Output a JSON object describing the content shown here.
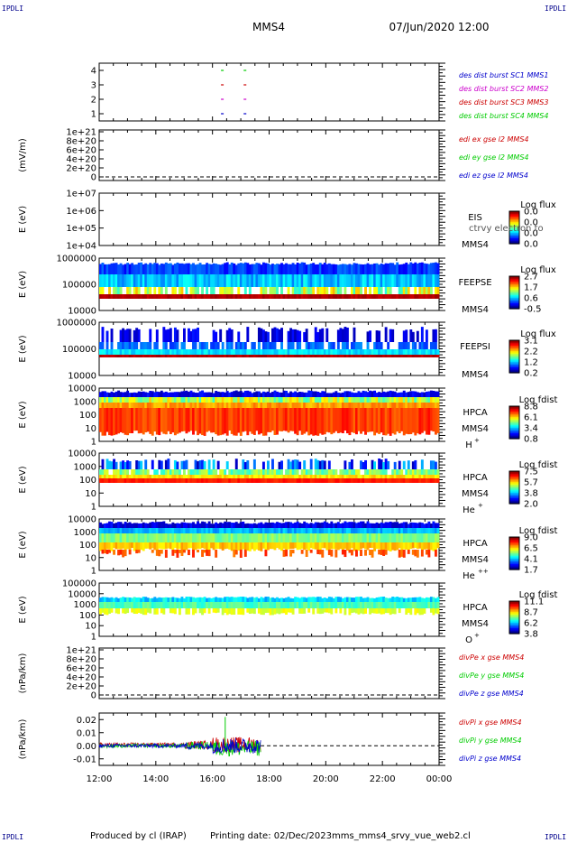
{
  "corner_label": "IPDLI",
  "header": {
    "spacecraft": "MMS4",
    "date": "07/Jun/2020 12:00"
  },
  "footer": {
    "produced_by": "Produced by cl (IRAP)",
    "printing_date": "Printing date: 02/Dec/2023",
    "script_name": "mms_mms4_srvy_vue_web2.cl"
  },
  "time_axis": {
    "ticks": [
      "12:00",
      "14:00",
      "16:00",
      "18:00",
      "20:00",
      "22:00",
      "00:00"
    ],
    "start_hour": 12,
    "end_hour": 24
  },
  "colors": {
    "red": "#cc0000",
    "green": "#00cc00",
    "blue": "#0000cc",
    "magenta": "#cc00cc",
    "corner": "#00008b"
  },
  "chart_data": [
    {
      "type": "line",
      "id": "burst",
      "ylabel": "",
      "ylim": [
        0.5,
        4.5
      ],
      "yticks": [
        "1",
        "2",
        "3",
        "4"
      ],
      "legend": [
        {
          "text": "des dist burst SC1 MMS1",
          "color": "#0000cc"
        },
        {
          "text": "des dist burst SC2 MMS2",
          "color": "#cc00cc"
        },
        {
          "text": "des dist burst SC3 MMS3",
          "color": "#cc0000"
        },
        {
          "text": "des dist burst SC4 MMS4",
          "color": "#00cc00"
        }
      ],
      "series": [
        {
          "sc": 1,
          "color": "#0000cc",
          "times": [
            16.3,
            17.1
          ]
        },
        {
          "sc": 2,
          "color": "#cc00cc",
          "times": [
            16.3,
            17.1
          ]
        },
        {
          "sc": 3,
          "color": "#cc0000",
          "times": [
            16.3,
            17.1
          ]
        },
        {
          "sc": 4,
          "color": "#00cc00",
          "times": [
            16.3,
            17.1
          ]
        }
      ]
    },
    {
      "type": "line",
      "id": "edi",
      "ylabel": "(mV/m)",
      "yticks": [
        "1e+21",
        "8e+20",
        "6e+20",
        "4e+20",
        "2e+20",
        "0"
      ],
      "legend": [
        {
          "text": "edi ex gse l2 MMS4",
          "color": "#cc0000"
        },
        {
          "text": "edi ey gse l2 MMS4",
          "color": "#00cc00"
        },
        {
          "text": "edi ez gse l2 MMS4",
          "color": "#0000cc"
        }
      ]
    },
    {
      "type": "heatmap",
      "id": "eis",
      "ylabel": "E (eV)",
      "yticks": [
        "1e+07",
        "1e+06",
        "1e+05",
        "1e+04"
      ],
      "instrument": [
        "EIS",
        "MMS4"
      ],
      "overlay_text": "ctrvy electron to",
      "colorbar_title": "Log flux",
      "colorbar_ticks": [
        "0.0",
        "0.0",
        "0.0",
        "0.0"
      ]
    },
    {
      "type": "heatmap",
      "id": "feepse",
      "ylabel": "E (eV)",
      "yticks": [
        "1000000",
        "100000",
        "10000"
      ],
      "instrument": [
        "FEEPSE",
        "MMS4"
      ],
      "colorbar_title": "Log flux",
      "colorbar_ticks": [
        "2.7",
        "1.7",
        "0.6",
        "-0.5"
      ]
    },
    {
      "type": "heatmap",
      "id": "feepsi",
      "ylabel": "E (eV)",
      "yticks": [
        "1000000",
        "100000",
        "10000"
      ],
      "instrument": [
        "FEEPSI",
        "MMS4"
      ],
      "colorbar_title": "Log flux",
      "colorbar_ticks": [
        "3.1",
        "2.2",
        "1.2",
        "0.2"
      ]
    },
    {
      "type": "heatmap",
      "id": "hpca-h",
      "ylabel": "E (eV)",
      "yticks": [
        "10000",
        "1000",
        "100",
        "10",
        "1"
      ],
      "instrument": [
        "HPCA",
        "MMS4",
        "H",
        "+"
      ],
      "colorbar_title": "Log fdist",
      "colorbar_ticks": [
        "8.8",
        "6.1",
        "3.4",
        "0.8"
      ]
    },
    {
      "type": "heatmap",
      "id": "hpca-he",
      "ylabel": "E (eV)",
      "yticks": [
        "10000",
        "1000",
        "100",
        "10",
        "1"
      ],
      "instrument": [
        "HPCA",
        "MMS4",
        "He",
        "+"
      ],
      "colorbar_title": "Log fdist",
      "colorbar_ticks": [
        "7.5",
        "5.7",
        "3.8",
        "2.0"
      ]
    },
    {
      "type": "heatmap",
      "id": "hpca-hepp",
      "ylabel": "E (eV)",
      "yticks": [
        "10000",
        "1000",
        "100",
        "10",
        "1"
      ],
      "instrument": [
        "HPCA",
        "MMS4",
        "He",
        "++"
      ],
      "colorbar_title": "Log fdist",
      "colorbar_ticks": [
        "9.0",
        "6.5",
        "4.1",
        "1.7"
      ]
    },
    {
      "type": "heatmap",
      "id": "hpca-o",
      "ylabel": "E (eV)",
      "yticks": [
        "100000",
        "10000",
        "1000",
        "100",
        "10",
        "1"
      ],
      "instrument": [
        "HPCA",
        "MMS4",
        "O",
        "+"
      ],
      "colorbar_title": "Log fdist",
      "colorbar_ticks": [
        "11.1",
        "8.7",
        "6.2",
        "3.8"
      ]
    },
    {
      "type": "line",
      "id": "divpe",
      "ylabel": "(nPa/km)",
      "yticks": [
        "1e+21",
        "8e+20",
        "6e+20",
        "4e+20",
        "2e+20",
        "0"
      ],
      "legend": [
        {
          "text": "divPe x gse MMS4",
          "color": "#cc0000"
        },
        {
          "text": "divPe y gse MMS4",
          "color": "#00cc00"
        },
        {
          "text": "divPe z gse MMS4",
          "color": "#0000cc"
        }
      ]
    },
    {
      "type": "line",
      "id": "divpi",
      "ylabel": "(nPa/km)",
      "ylim": [
        -0.015,
        0.025
      ],
      "yticks": [
        "0.02",
        "0.01",
        "0.00",
        "-0.01"
      ],
      "legend": [
        {
          "text": "divPi x gse MMS4",
          "color": "#cc0000"
        },
        {
          "text": "divPi y gse MMS4",
          "color": "#00cc00"
        },
        {
          "text": "divPi z gse MMS4",
          "color": "#0000cc"
        }
      ],
      "data_end_hour": 17.7,
      "spike": {
        "x": 16.45,
        "y": 0.022
      }
    }
  ]
}
